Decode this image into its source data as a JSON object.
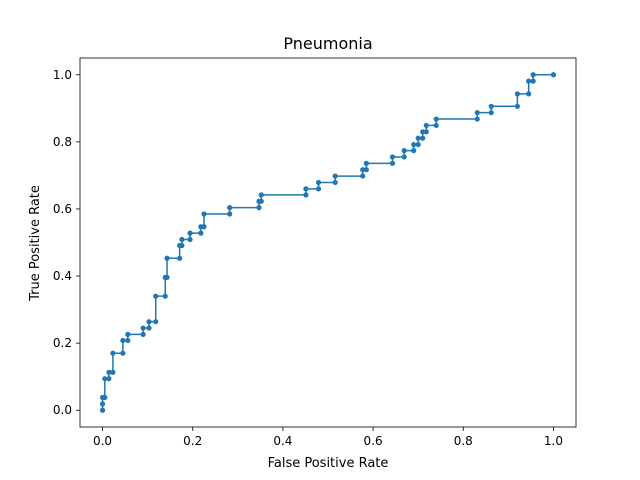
{
  "chart_data": {
    "type": "line",
    "title": "Pneumonia",
    "xlabel": "False Positive Rate",
    "ylabel": "True Positive Rate",
    "xlim": [
      -0.05,
      1.05
    ],
    "ylim": [
      -0.05,
      1.05
    ],
    "xticks": [
      "0.0",
      "0.2",
      "0.4",
      "0.6",
      "0.8",
      "1.0"
    ],
    "yticks": [
      "0.0",
      "0.2",
      "0.4",
      "0.6",
      "0.8",
      "1.0"
    ],
    "grid": false,
    "series": [
      {
        "color": "#1f77b4",
        "marker": "circle",
        "drawstyle": "steps-post",
        "points": [
          [
            0.0,
            0.0
          ],
          [
            0.0,
            0.019
          ],
          [
            0.0,
            0.038
          ],
          [
            0.005,
            0.038
          ],
          [
            0.005,
            0.094
          ],
          [
            0.014,
            0.094
          ],
          [
            0.014,
            0.113
          ],
          [
            0.023,
            0.113
          ],
          [
            0.023,
            0.17
          ],
          [
            0.045,
            0.17
          ],
          [
            0.045,
            0.208
          ],
          [
            0.056,
            0.208
          ],
          [
            0.056,
            0.226
          ],
          [
            0.09,
            0.226
          ],
          [
            0.09,
            0.245
          ],
          [
            0.103,
            0.245
          ],
          [
            0.103,
            0.264
          ],
          [
            0.118,
            0.264
          ],
          [
            0.118,
            0.34
          ],
          [
            0.139,
            0.34
          ],
          [
            0.139,
            0.396
          ],
          [
            0.143,
            0.396
          ],
          [
            0.143,
            0.453
          ],
          [
            0.171,
            0.453
          ],
          [
            0.171,
            0.491
          ],
          [
            0.176,
            0.491
          ],
          [
            0.176,
            0.509
          ],
          [
            0.194,
            0.509
          ],
          [
            0.194,
            0.528
          ],
          [
            0.218,
            0.528
          ],
          [
            0.218,
            0.547
          ],
          [
            0.225,
            0.547
          ],
          [
            0.225,
            0.585
          ],
          [
            0.282,
            0.585
          ],
          [
            0.282,
            0.604
          ],
          [
            0.347,
            0.604
          ],
          [
            0.347,
            0.623
          ],
          [
            0.352,
            0.623
          ],
          [
            0.352,
            0.642
          ],
          [
            0.451,
            0.642
          ],
          [
            0.451,
            0.66
          ],
          [
            0.479,
            0.66
          ],
          [
            0.479,
            0.679
          ],
          [
            0.516,
            0.679
          ],
          [
            0.516,
            0.698
          ],
          [
            0.577,
            0.698
          ],
          [
            0.577,
            0.717
          ],
          [
            0.585,
            0.717
          ],
          [
            0.585,
            0.736
          ],
          [
            0.643,
            0.736
          ],
          [
            0.643,
            0.755
          ],
          [
            0.669,
            0.755
          ],
          [
            0.669,
            0.774
          ],
          [
            0.69,
            0.774
          ],
          [
            0.69,
            0.792
          ],
          [
            0.7,
            0.792
          ],
          [
            0.7,
            0.811
          ],
          [
            0.71,
            0.811
          ],
          [
            0.71,
            0.83
          ],
          [
            0.718,
            0.83
          ],
          [
            0.718,
            0.849
          ],
          [
            0.74,
            0.849
          ],
          [
            0.74,
            0.868
          ],
          [
            0.831,
            0.868
          ],
          [
            0.831,
            0.887
          ],
          [
            0.862,
            0.887
          ],
          [
            0.862,
            0.906
          ],
          [
            0.92,
            0.906
          ],
          [
            0.92,
            0.943
          ],
          [
            0.945,
            0.943
          ],
          [
            0.945,
            0.981
          ],
          [
            0.955,
            0.981
          ],
          [
            0.955,
            1.0
          ],
          [
            1.0,
            1.0
          ]
        ]
      }
    ]
  }
}
